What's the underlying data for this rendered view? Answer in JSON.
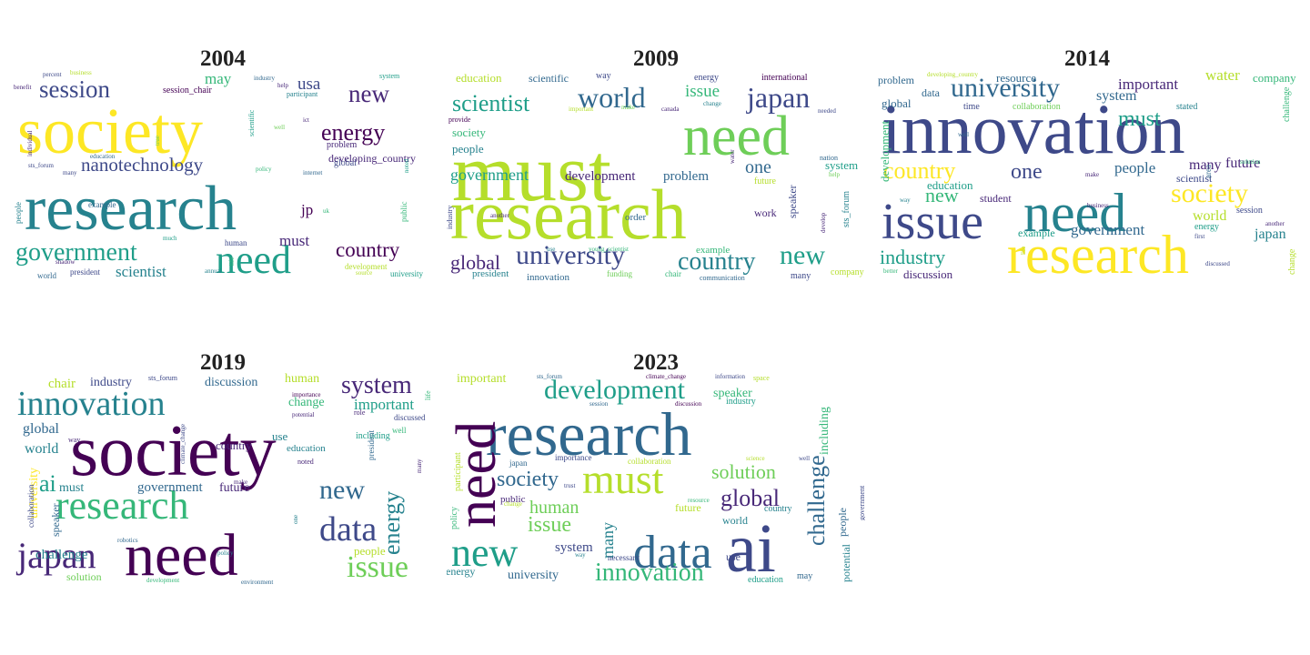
{
  "palette": [
    "#440154",
    "#482878",
    "#3e4989",
    "#31688e",
    "#26828e",
    "#1f9e89",
    "#35b779",
    "#6ece58",
    "#b5de2b",
    "#fde725"
  ],
  "panels": [
    {
      "year": "2004",
      "words": [
        [
          "society",
          72,
          9
        ],
        [
          "research",
          70,
          4
        ],
        [
          "need",
          44,
          5
        ],
        [
          "government",
          28,
          5
        ],
        [
          "session",
          27,
          2
        ],
        [
          "new",
          27,
          1
        ],
        [
          "energy",
          26,
          0
        ],
        [
          "nanotechnology",
          21,
          2
        ],
        [
          "country",
          23,
          0
        ],
        [
          "scientist",
          17,
          4
        ],
        [
          "must",
          17,
          1
        ],
        [
          "jp",
          17,
          0
        ],
        [
          "usa",
          19,
          2
        ],
        [
          "may",
          17,
          6
        ],
        [
          "developing_country",
          12,
          1
        ],
        [
          "problem",
          10,
          1
        ],
        [
          "global",
          10,
          2
        ],
        [
          "session_chair",
          10,
          0
        ],
        [
          "human",
          9,
          2
        ],
        [
          "president",
          9,
          2
        ],
        [
          "world",
          9,
          3
        ],
        [
          "development",
          9,
          8
        ],
        [
          "university",
          9,
          5
        ],
        [
          "example",
          9,
          3
        ],
        [
          "people",
          9,
          4
        ],
        [
          "public",
          9,
          6
        ],
        [
          "scientific",
          8,
          5
        ],
        [
          "participant",
          8,
          4
        ],
        [
          "system",
          8,
          5
        ],
        [
          "benefit",
          7,
          1
        ],
        [
          "percent",
          7,
          2
        ],
        [
          "business",
          7,
          8
        ],
        [
          "industry",
          7,
          3
        ],
        [
          "help",
          7,
          1
        ],
        [
          "policy",
          7,
          6
        ],
        [
          "internet",
          7,
          3
        ],
        [
          "sts_forum",
          7,
          2
        ],
        [
          "shadow",
          7,
          1
        ],
        [
          "noted",
          7,
          5
        ],
        [
          "source",
          7,
          8
        ],
        [
          "many",
          7,
          2
        ],
        [
          "well",
          7,
          7
        ],
        [
          "education",
          7,
          3
        ],
        [
          "individual",
          7,
          1
        ],
        [
          "ict",
          7,
          1
        ],
        [
          "much",
          7,
          5
        ],
        [
          "life",
          7,
          6
        ],
        [
          "annual",
          7,
          4
        ],
        [
          "uk",
          7,
          6
        ],
        [
          "true",
          7,
          7
        ]
      ]
    },
    {
      "year": "2009",
      "words": [
        [
          "must",
          90,
          8
        ],
        [
          "research",
          78,
          8
        ],
        [
          "need",
          62,
          7
        ],
        [
          "world",
          32,
          3
        ],
        [
          "japan",
          32,
          2
        ],
        [
          "university",
          30,
          2
        ],
        [
          "new",
          30,
          5
        ],
        [
          "country",
          28,
          4
        ],
        [
          "scientist",
          26,
          5
        ],
        [
          "government",
          18,
          5
        ],
        [
          "global",
          22,
          1
        ],
        [
          "one",
          20,
          3
        ],
        [
          "issue",
          19,
          6
        ],
        [
          "development",
          15,
          1
        ],
        [
          "problem",
          15,
          3
        ],
        [
          "system",
          13,
          5
        ],
        [
          "society",
          13,
          6
        ],
        [
          "people",
          13,
          4
        ],
        [
          "education",
          13,
          8
        ],
        [
          "scientific",
          12,
          3
        ],
        [
          "work",
          12,
          1
        ],
        [
          "speaker",
          12,
          2
        ],
        [
          "order",
          11,
          3
        ],
        [
          "example",
          11,
          6
        ],
        [
          "president",
          11,
          4
        ],
        [
          "innovation",
          11,
          3
        ],
        [
          "many",
          10,
          2
        ],
        [
          "international",
          10,
          0
        ],
        [
          "sts_forum",
          10,
          4
        ],
        [
          "company",
          10,
          8
        ],
        [
          "way",
          10,
          2
        ],
        [
          "energy",
          10,
          2
        ],
        [
          "future",
          10,
          8
        ],
        [
          "chair",
          9,
          6
        ],
        [
          "funding",
          9,
          7
        ],
        [
          "communication",
          8,
          3
        ],
        [
          "nation",
          8,
          3
        ],
        [
          "provide",
          8,
          0
        ],
        [
          "industry",
          8,
          2
        ],
        [
          "another",
          7,
          1
        ],
        [
          "use",
          7,
          4
        ],
        [
          "young_scientist",
          7,
          6
        ],
        [
          "water",
          7,
          1
        ],
        [
          "help",
          7,
          7
        ],
        [
          "develop",
          7,
          1
        ],
        [
          "needed",
          7,
          2
        ],
        [
          "change",
          7,
          4
        ],
        [
          "canada",
          7,
          1
        ],
        [
          "make",
          7,
          7
        ],
        [
          "important",
          7,
          8
        ]
      ]
    },
    {
      "year": "2014",
      "words": [
        [
          "innovation",
          78,
          2
        ],
        [
          "research",
          60,
          9
        ],
        [
          "issue",
          56,
          2
        ],
        [
          "need",
          60,
          4
        ],
        [
          "university",
          30,
          3
        ],
        [
          "society",
          30,
          9
        ],
        [
          "country",
          26,
          9
        ],
        [
          "one",
          24,
          2
        ],
        [
          "must",
          24,
          5
        ],
        [
          "industry",
          22,
          5
        ],
        [
          "new",
          22,
          6
        ],
        [
          "important",
          17,
          1
        ],
        [
          "government",
          17,
          3
        ],
        [
          "people",
          17,
          3
        ],
        [
          "water",
          17,
          8
        ],
        [
          "system",
          16,
          3
        ],
        [
          "future",
          16,
          1
        ],
        [
          "world",
          16,
          8
        ],
        [
          "japan",
          16,
          4
        ],
        [
          "many",
          16,
          1
        ],
        [
          "company",
          13,
          6
        ],
        [
          "development",
          13,
          6
        ],
        [
          "global",
          13,
          3
        ],
        [
          "education",
          13,
          5
        ],
        [
          "resource",
          13,
          3
        ],
        [
          "scientist",
          12,
          2
        ],
        [
          "student",
          12,
          1
        ],
        [
          "data",
          12,
          3
        ],
        [
          "problem",
          12,
          3
        ],
        [
          "discussion",
          13,
          1
        ],
        [
          "example",
          12,
          5
        ],
        [
          "challenge",
          10,
          6
        ],
        [
          "energy",
          10,
          5
        ],
        [
          "time",
          10,
          2
        ],
        [
          "collaboration",
          10,
          7
        ],
        [
          "stated",
          10,
          4
        ],
        [
          "session",
          10,
          2
        ],
        [
          "change",
          10,
          8
        ],
        [
          "area",
          9,
          3
        ],
        [
          "another",
          7,
          1
        ],
        [
          "first",
          7,
          2
        ],
        [
          "discussed",
          7,
          2
        ],
        [
          "make",
          7,
          1
        ],
        [
          "solution",
          7,
          6
        ],
        [
          "business",
          7,
          1
        ],
        [
          "way",
          7,
          4
        ],
        [
          "better",
          7,
          6
        ],
        [
          "well",
          7,
          3
        ],
        [
          "developing_country",
          7,
          8
        ],
        [
          "life",
          7,
          8
        ]
      ]
    },
    {
      "year": "2019",
      "words": [
        [
          "society",
          80,
          0
        ],
        [
          "need",
          66,
          0
        ],
        [
          "research",
          44,
          6
        ],
        [
          "innovation",
          38,
          4
        ],
        [
          "japan",
          40,
          1
        ],
        [
          "data",
          38,
          2
        ],
        [
          "issue",
          34,
          7
        ],
        [
          "new",
          30,
          3
        ],
        [
          "system",
          28,
          1
        ],
        [
          "energy",
          26,
          4
        ],
        [
          "ai",
          26,
          5
        ],
        [
          "global",
          16,
          3
        ],
        [
          "world",
          16,
          4
        ],
        [
          "challenge",
          15,
          4
        ],
        [
          "government",
          15,
          3
        ],
        [
          "important",
          17,
          5
        ],
        [
          "change",
          14,
          6
        ],
        [
          "human",
          14,
          8
        ],
        [
          "discussion",
          14,
          3
        ],
        [
          "industry",
          14,
          2
        ],
        [
          "must",
          14,
          4
        ],
        [
          "future",
          14,
          1
        ],
        [
          "people",
          13,
          8
        ],
        [
          "country",
          13,
          1
        ],
        [
          "chair",
          15,
          8
        ],
        [
          "university",
          14,
          9
        ],
        [
          "speaker",
          12,
          3
        ],
        [
          "solution",
          12,
          7
        ],
        [
          "education",
          11,
          4
        ],
        [
          "use",
          13,
          4
        ],
        [
          "including",
          10,
          5
        ],
        [
          "president",
          9,
          3
        ],
        [
          "discussed",
          9,
          2
        ],
        [
          "sts_forum",
          8,
          2
        ],
        [
          "collaboration",
          9,
          2
        ],
        [
          "role",
          8,
          1
        ],
        [
          "well",
          9,
          6
        ],
        [
          "noted",
          8,
          1
        ],
        [
          "way",
          8,
          1
        ],
        [
          "life",
          8,
          6
        ],
        [
          "importance",
          7,
          0
        ],
        [
          "potential",
          7,
          1
        ],
        [
          "climate_change",
          7,
          2
        ],
        [
          "make",
          7,
          1
        ],
        [
          "robotics",
          7,
          3
        ],
        [
          "policy",
          7,
          4
        ],
        [
          "development",
          7,
          6
        ],
        [
          "environment",
          7,
          3
        ],
        [
          "one",
          7,
          4
        ],
        [
          "many",
          7,
          1
        ]
      ]
    },
    {
      "year": "2023",
      "words": [
        [
          "research",
          68,
          3
        ],
        [
          "need",
          62,
          0
        ],
        [
          "ai",
          76,
          2
        ],
        [
          "must",
          46,
          8
        ],
        [
          "data",
          52,
          3
        ],
        [
          "new",
          44,
          5
        ],
        [
          "development",
          30,
          5
        ],
        [
          "innovation",
          28,
          6
        ],
        [
          "challenge",
          26,
          3
        ],
        [
          "society",
          24,
          3
        ],
        [
          "global",
          26,
          1
        ],
        [
          "solution",
          22,
          7
        ],
        [
          "issue",
          24,
          7
        ],
        [
          "human",
          20,
          7
        ],
        [
          "many",
          18,
          4
        ],
        [
          "system",
          15,
          2
        ],
        [
          "including",
          14,
          6
        ],
        [
          "speaker",
          14,
          6
        ],
        [
          "important",
          14,
          8
        ],
        [
          "potential",
          12,
          4
        ],
        [
          "people",
          12,
          3
        ],
        [
          "world",
          12,
          4
        ],
        [
          "university",
          14,
          3
        ],
        [
          "energy",
          12,
          4
        ],
        [
          "future",
          12,
          8
        ],
        [
          "use",
          12,
          2
        ],
        [
          "public",
          11,
          1
        ],
        [
          "policy",
          10,
          6
        ],
        [
          "participant",
          10,
          8
        ],
        [
          "education",
          10,
          5
        ],
        [
          "may",
          10,
          3
        ],
        [
          "country",
          10,
          4
        ],
        [
          "industry",
          10,
          5
        ],
        [
          "necessary",
          9,
          2
        ],
        [
          "collaboration",
          9,
          8
        ],
        [
          "importance",
          9,
          2
        ],
        [
          "japan",
          9,
          3
        ],
        [
          "government",
          8,
          2
        ],
        [
          "sts_forum",
          7,
          3
        ],
        [
          "climate_change",
          7,
          0
        ],
        [
          "information",
          7,
          2
        ],
        [
          "space",
          8,
          8
        ],
        [
          "discussion",
          7,
          0
        ],
        [
          "session",
          7,
          3
        ],
        [
          "trust",
          7,
          2
        ],
        [
          "change",
          7,
          8
        ],
        [
          "way",
          7,
          4
        ],
        [
          "resource",
          7,
          6
        ],
        [
          "well",
          7,
          2
        ],
        [
          "science",
          7,
          8
        ]
      ]
    }
  ]
}
